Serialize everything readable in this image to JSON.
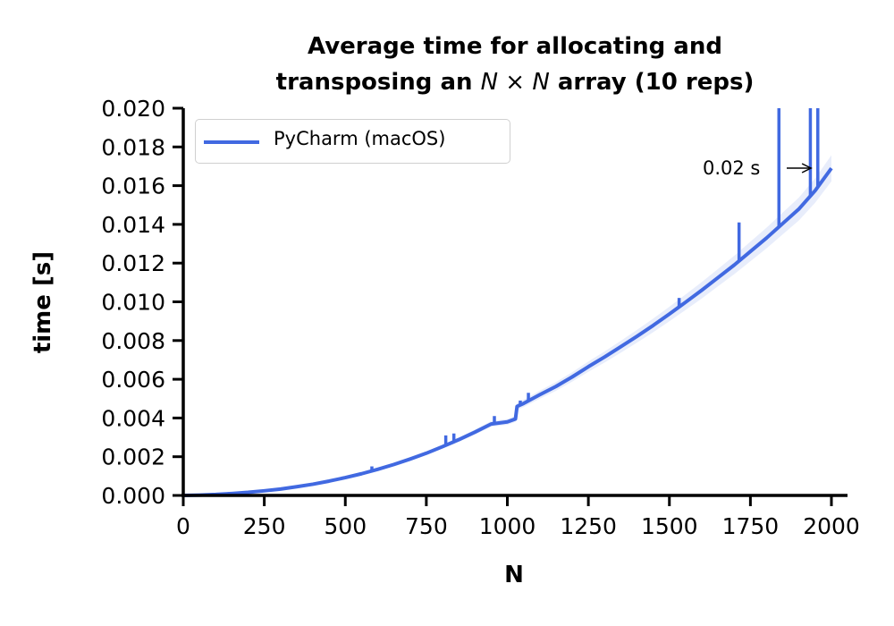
{
  "chart_data": {
    "type": "line",
    "title_line1": "Average time for allocating and",
    "title_line2_pre": "transposing an ",
    "title_math": "N × N",
    "title_line2_post": " array (10 reps)",
    "xlabel": "N",
    "ylabel": "time [s]",
    "xlim": [
      0,
      2000
    ],
    "ylim": [
      0,
      0.02
    ],
    "xticks": [
      0,
      250,
      500,
      750,
      1000,
      1250,
      1500,
      1750,
      2000
    ],
    "xtick_labels": [
      "0",
      "250",
      "500",
      "750",
      "1000",
      "1250",
      "1500",
      "1750",
      "2000"
    ],
    "yticks": [
      0,
      0.002,
      0.004,
      0.006,
      0.008,
      0.01,
      0.012,
      0.014,
      0.016,
      0.018,
      0.02
    ],
    "ytick_labels": [
      "0.000",
      "0.002",
      "0.004",
      "0.006",
      "0.008",
      "0.010",
      "0.012",
      "0.014",
      "0.016",
      "0.018",
      "0.020"
    ],
    "legend": {
      "position": "upper-left",
      "entries": [
        "PyCharm (macOS)"
      ]
    },
    "series": [
      {
        "name": "PyCharm (macOS)",
        "color": "#4169e1",
        "x": [
          1,
          50,
          100,
          150,
          200,
          250,
          300,
          350,
          400,
          450,
          500,
          550,
          600,
          650,
          700,
          750,
          800,
          850,
          900,
          950,
          1000,
          1025,
          1030,
          1050,
          1100,
          1150,
          1200,
          1250,
          1300,
          1350,
          1400,
          1450,
          1500,
          1550,
          1600,
          1650,
          1700,
          1750,
          1800,
          1850,
          1900,
          1950,
          2000
        ],
        "y": [
          0.0,
          2e-05,
          5e-05,
          0.0001,
          0.00016,
          0.00024,
          0.00033,
          0.00045,
          0.00058,
          0.00074,
          0.00092,
          0.00112,
          0.00135,
          0.0016,
          0.00188,
          0.00218,
          0.00252,
          0.00288,
          0.00327,
          0.00369,
          0.0038,
          0.00395,
          0.0046,
          0.00475,
          0.0052,
          0.00563,
          0.00612,
          0.00665,
          0.00715,
          0.00768,
          0.00822,
          0.00878,
          0.00937,
          0.00998,
          0.0106,
          0.01125,
          0.0119,
          0.0126,
          0.0133,
          0.01405,
          0.0148,
          0.01575,
          0.0169
        ]
      }
    ],
    "spikes": [
      {
        "x": 68,
        "y": 8e-05
      },
      {
        "x": 582,
        "y": 0.0015
      },
      {
        "x": 810,
        "y": 0.0031
      },
      {
        "x": 835,
        "y": 0.0032
      },
      {
        "x": 960,
        "y": 0.0041
      },
      {
        "x": 1040,
        "y": 0.0049
      },
      {
        "x": 1065,
        "y": 0.0053
      },
      {
        "x": 1530,
        "y": 0.0102
      },
      {
        "x": 1715,
        "y": 0.0141
      },
      {
        "x": 1838,
        "y": 0.02
      },
      {
        "x": 1935,
        "y": 0.02
      },
      {
        "x": 1958,
        "y": 0.02
      }
    ],
    "annotation": {
      "text": "0.02 s",
      "arrow_to": {
        "x": 1970,
        "y": 0.0169
      }
    }
  }
}
